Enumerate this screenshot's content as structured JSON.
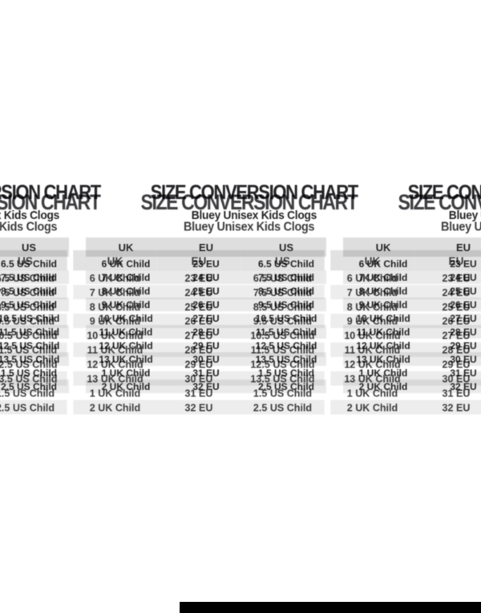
{
  "page": {
    "title": "SIZE CONVERSION CHART",
    "subtitle": "Bluey Unisex Kids Clogs"
  },
  "size_chart": {
    "columns": [
      "UK",
      "EU",
      "US"
    ],
    "rows": [
      [
        "6 UK Child",
        "23 EU",
        "6.5 US Child"
      ],
      [
        "7 UK Child",
        "24 EU",
        "7.5 US Child"
      ],
      [
        "8 UK Child",
        "25 EU",
        "8.5 US Child"
      ],
      [
        "9 UK Child",
        "26 EU",
        "9.5 US Child"
      ],
      [
        "10 UK Child",
        "27 EU",
        "10.5 US Child"
      ],
      [
        "11 UK Child",
        "28 EU",
        "11.5 US Child"
      ],
      [
        "12 UK Child",
        "29 EU",
        "12.5 US Child"
      ],
      [
        "13 UK Child",
        "30 EU",
        "13.5 US Child"
      ],
      [
        "1 UK Child",
        "31 EU",
        "1.5 US Child"
      ],
      [
        "2 UK Child",
        "32 EU",
        "2.5 US Child"
      ]
    ]
  },
  "colors": {
    "text": "#111111",
    "row_band": "#e9e9e9",
    "header_band": "#dcdcdc",
    "footer_bar": "#000000"
  }
}
